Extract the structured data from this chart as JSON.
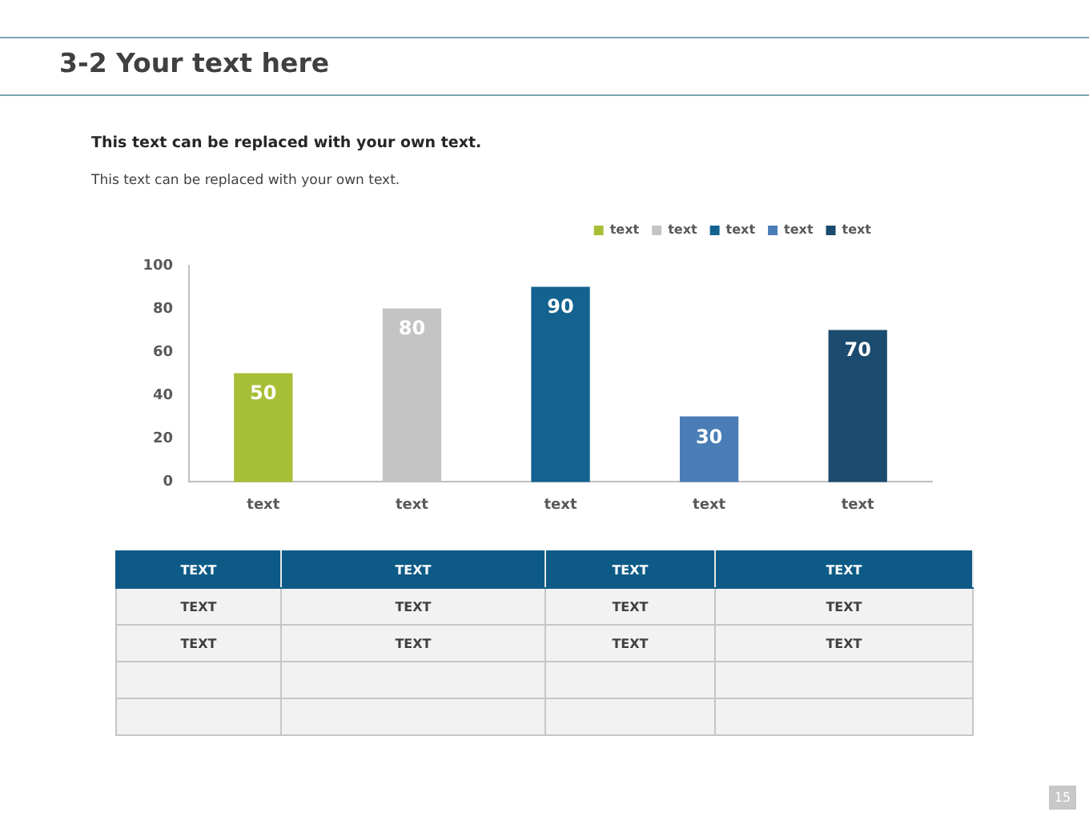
{
  "chart_data": [
    {
      "type": "bar",
      "title": "3-2 Your text here",
      "subtitle": "This text can be replaced with your own text.",
      "annotations": [
        "This text can be replaced with your own text.",
        "15"
      ],
      "categories": [
        "text",
        "text",
        "text",
        "text",
        "text"
      ],
      "series": [
        {
          "name": "text",
          "color": "#a6bf37",
          "values": [
            50,
            null,
            null,
            null,
            null
          ]
        },
        {
          "name": "text",
          "color": "#c4c4c4",
          "values": [
            null,
            80,
            null,
            null,
            null
          ]
        },
        {
          "name": "text",
          "color": "#13628f",
          "values": [
            null,
            null,
            90,
            null,
            null
          ]
        },
        {
          "name": "text",
          "color": "#4a7db5",
          "values": [
            null,
            null,
            null,
            30,
            null
          ]
        },
        {
          "name": "text",
          "color": "#1b4b6e",
          "values": [
            null,
            null,
            null,
            null,
            70
          ]
        }
      ],
      "ylim": [
        0,
        100
      ],
      "yticks": [
        0,
        20,
        40,
        60,
        80,
        100
      ],
      "data_labels": true,
      "legend": "top right"
    },
    {
      "type": "other",
      "annotations": [
        "TEXT",
        "TEXT",
        "TEXT",
        "TEXT",
        "TEXT",
        "TEXT",
        "TEXT",
        "TEXT",
        "TEXT",
        "TEXT",
        "TEXT",
        "TEXT"
      ]
    }
  ]
}
